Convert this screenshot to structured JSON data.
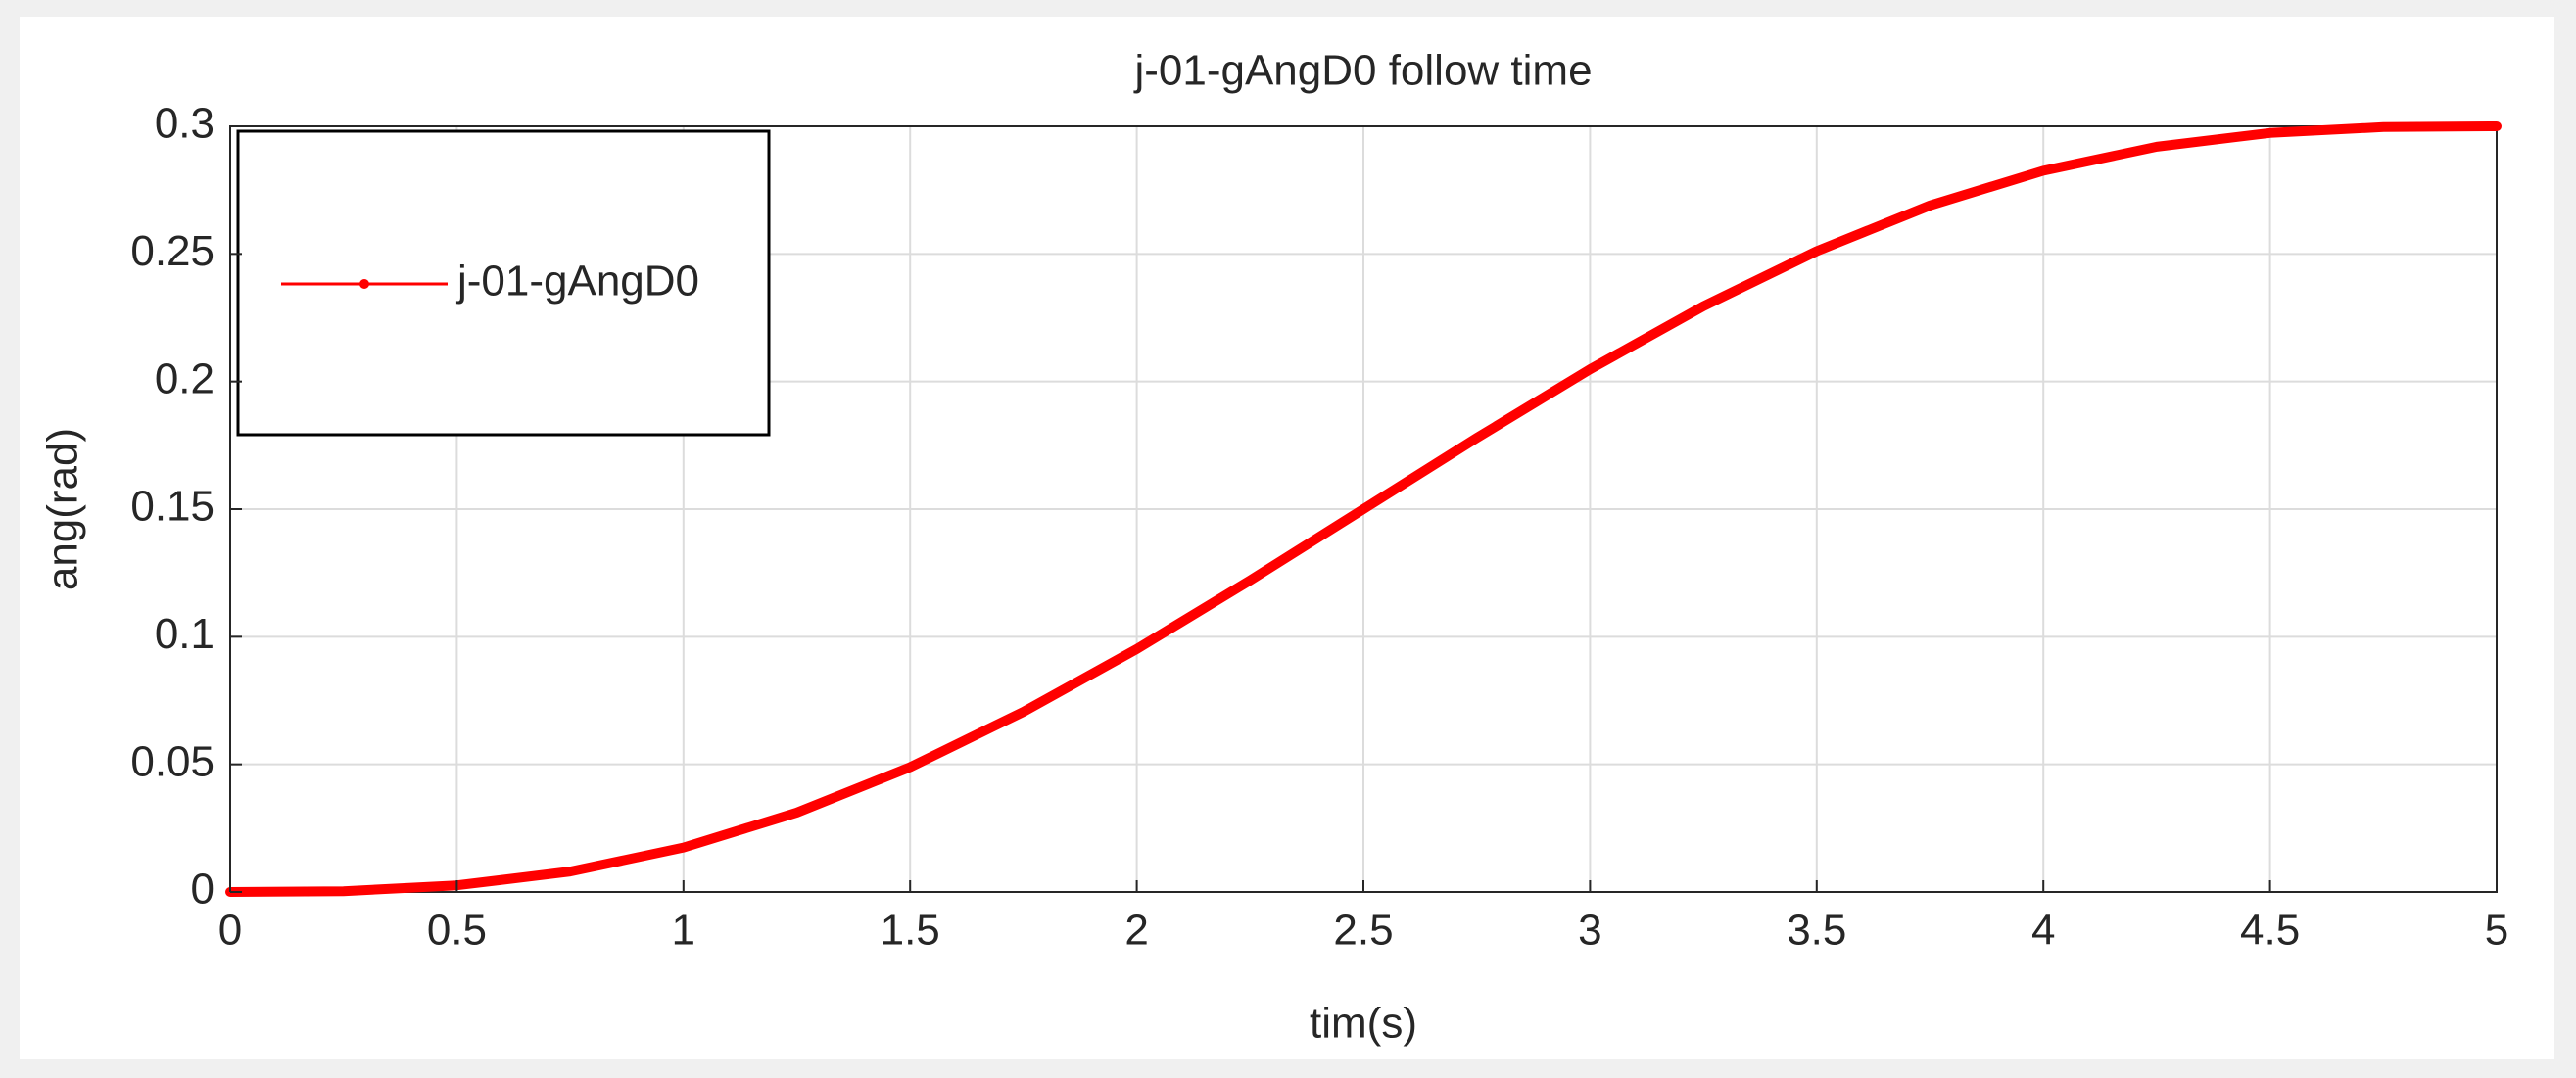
{
  "chart_data": {
    "type": "line",
    "title": "j-01-gAngD0 follow time",
    "x_label": "tim(s)",
    "y_label": "ang(rad)",
    "x": [
      0,
      0.25,
      0.5,
      0.75,
      1,
      1.25,
      1.5,
      1.75,
      2,
      2.25,
      2.5,
      2.75,
      3,
      3.25,
      3.5,
      3.75,
      4,
      4.25,
      4.5,
      4.75,
      5
    ],
    "series": [
      {
        "name": "j-01-gAngD0",
        "color": "#ff0000",
        "values": [
          0,
          0.0003,
          0.0026,
          0.008,
          0.0174,
          0.0311,
          0.0489,
          0.0706,
          0.0952,
          0.1221,
          0.15,
          0.1779,
          0.2048,
          0.2295,
          0.2511,
          0.269,
          0.2826,
          0.292,
          0.2974,
          0.2997,
          0.3
        ]
      }
    ],
    "xlim": [
      0,
      5
    ],
    "xticks": [
      0,
      0.5,
      1,
      1.5,
      2,
      2.5,
      3,
      3.5,
      4,
      4.5,
      5
    ],
    "ylim": [
      0,
      0.3
    ],
    "yticks": [
      0,
      0.05,
      0.1,
      0.15,
      0.2,
      0.25,
      0.3
    ],
    "grid": true,
    "legend": "upper-left"
  }
}
